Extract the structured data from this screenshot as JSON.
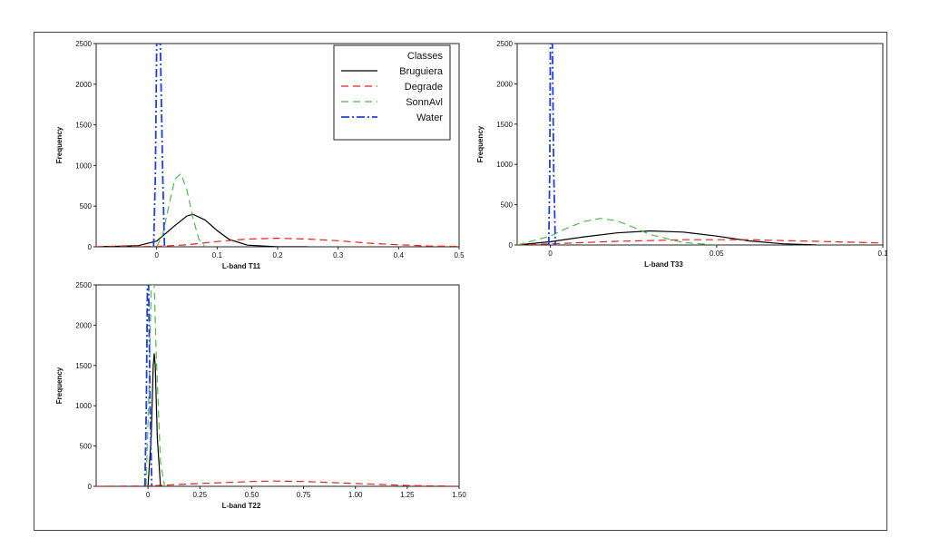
{
  "chart_data": [
    {
      "type": "line",
      "xlabel": "L-band T11",
      "ylabel": "Frequency",
      "xlim": [
        -0.1,
        0.5
      ],
      "ylim": [
        0,
        2500
      ],
      "xticks": [
        0,
        0.1,
        0.2,
        0.3,
        0.4,
        0.5
      ],
      "xtick_labels": [
        "0",
        "0.1",
        "0.2",
        "0.3",
        "0.4",
        "0.5"
      ],
      "yticks": [
        0,
        500,
        1000,
        1500,
        2000,
        2500
      ],
      "ytick_labels": [
        "0",
        "500",
        "1000",
        "1500",
        "2000",
        "2500"
      ],
      "legend": {
        "title": "Classes",
        "position": "top-right"
      },
      "series": [
        {
          "name": "Bruguiera",
          "color": "#000000",
          "style": "solid",
          "x": [
            -0.1,
            -0.03,
            0,
            0.03,
            0.05,
            0.06,
            0.08,
            0.1,
            0.12,
            0.15,
            0.2,
            0.25
          ],
          "y": [
            0,
            15,
            70,
            260,
            380,
            400,
            330,
            200,
            90,
            20,
            0,
            0
          ]
        },
        {
          "name": "Degrade",
          "color": "#e8201c",
          "style": "dashed",
          "x": [
            -0.1,
            0,
            0.05,
            0.1,
            0.15,
            0.2,
            0.25,
            0.3,
            0.35,
            0.4,
            0.45,
            0.5
          ],
          "y": [
            0,
            5,
            25,
            65,
            95,
            105,
            95,
            75,
            45,
            25,
            10,
            5
          ]
        },
        {
          "name": "SonnAvl",
          "color": "#4cbb4c",
          "style": "dashed",
          "x": [
            0,
            0.01,
            0.02,
            0.03,
            0.04,
            0.05,
            0.06,
            0.07,
            0.08
          ],
          "y": [
            0,
            150,
            500,
            830,
            900,
            700,
            350,
            90,
            0
          ]
        },
        {
          "name": "Water",
          "color": "#1f3fe0",
          "style": "dashdot",
          "x": [
            -0.005,
            -0.002,
            0,
            0.003,
            0.006,
            0.01,
            0.013
          ],
          "y": [
            0,
            900,
            2500,
            2500,
            2500,
            900,
            0
          ]
        }
      ]
    },
    {
      "type": "line",
      "xlabel": "L-band T33",
      "ylabel": "Frequency",
      "xlim": [
        -0.01,
        0.1
      ],
      "ylim": [
        0,
        2500
      ],
      "xticks": [
        0,
        0.05,
        0.1
      ],
      "xtick_labels": [
        "0",
        "0.05",
        "0.1"
      ],
      "yticks": [
        0,
        500,
        1000,
        1500,
        2000,
        2500
      ],
      "ytick_labels": [
        "0",
        "500",
        "1000",
        "1500",
        "2000",
        "2500"
      ],
      "series": [
        {
          "name": "Bruguiera",
          "color": "#000000",
          "style": "solid",
          "x": [
            -0.01,
            0,
            0.01,
            0.02,
            0.03,
            0.04,
            0.05,
            0.06,
            0.07,
            0.08
          ],
          "y": [
            0,
            40,
            100,
            150,
            175,
            160,
            110,
            50,
            15,
            0
          ]
        },
        {
          "name": "Degrade",
          "color": "#e8201c",
          "style": "dashed",
          "x": [
            -0.01,
            0,
            0.02,
            0.04,
            0.06,
            0.08,
            0.1
          ],
          "y": [
            0,
            15,
            45,
            65,
            65,
            45,
            25
          ]
        },
        {
          "name": "SonnAvl",
          "color": "#4cbb4c",
          "style": "dashed",
          "x": [
            -0.01,
            0,
            0.005,
            0.01,
            0.015,
            0.02,
            0.025,
            0.03,
            0.04,
            0.05
          ],
          "y": [
            0,
            110,
            210,
            290,
            330,
            300,
            220,
            130,
            30,
            0
          ]
        },
        {
          "name": "Water",
          "color": "#1f3fe0",
          "style": "dashdot",
          "x": [
            -0.0005,
            -0.0002,
            0,
            0.0003,
            0.0006,
            0.001,
            0.0015
          ],
          "y": [
            0,
            900,
            2500,
            2500,
            2500,
            900,
            0
          ]
        }
      ]
    },
    {
      "type": "line",
      "xlabel": "L-band T22",
      "ylabel": "Frequency",
      "xlim": [
        -0.25,
        1.5
      ],
      "ylim": [
        0,
        2500
      ],
      "xticks": [
        0,
        0.25,
        0.5,
        0.75,
        1.0,
        1.25,
        1.5
      ],
      "xtick_labels": [
        "0",
        "0.25",
        "0.50",
        "0.75",
        "1.00",
        "1.25",
        "1.50"
      ],
      "yticks": [
        0,
        500,
        1000,
        1500,
        2000,
        2500
      ],
      "ytick_labels": [
        "0",
        "500",
        "1000",
        "1500",
        "2000",
        "2500"
      ],
      "series": [
        {
          "name": "Bruguiera",
          "color": "#000000",
          "style": "solid",
          "x": [
            0,
            0.015,
            0.025,
            0.03,
            0.035,
            0.045,
            0.06
          ],
          "y": [
            0,
            600,
            1500,
            1650,
            1500,
            600,
            0
          ]
        },
        {
          "name": "Degrade",
          "color": "#e8201c",
          "style": "dashed",
          "x": [
            -0.25,
            0,
            0.25,
            0.5,
            0.6,
            0.75,
            1.0,
            1.25,
            1.5
          ],
          "y": [
            0,
            5,
            35,
            60,
            65,
            60,
            35,
            10,
            0
          ]
        },
        {
          "name": "SonnAvl",
          "color": "#4cbb4c",
          "style": "dashed",
          "x": [
            -0.01,
            0.005,
            0.015,
            0.02,
            0.03,
            0.04,
            0.06,
            0.08
          ],
          "y": [
            0,
            1200,
            2500,
            2500,
            2500,
            1600,
            300,
            0
          ]
        },
        {
          "name": "Water",
          "color": "#1f3fe0",
          "style": "dashdot",
          "x": [
            -0.015,
            -0.008,
            -0.003,
            0,
            0.003,
            0.01,
            0.018
          ],
          "y": [
            0,
            1000,
            2500,
            2500,
            2500,
            1000,
            0
          ]
        }
      ]
    }
  ]
}
